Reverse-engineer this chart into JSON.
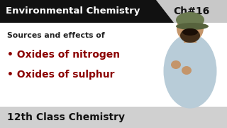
{
  "title_text": "Environmental Chemistry",
  "chapter_text": "Ch#16",
  "subtitle_text": "Sources and effects of",
  "bullet1": "• Oxides of nitrogen",
  "bullet2": "• Oxides of sulphur",
  "bottom_text": "12th Class Chemistry",
  "bg_color": "#ffffff",
  "top_bar_color": "#111111",
  "top_bar_gray_color": "#c8c8c8",
  "bottom_bar_color": "#d0d0d0",
  "title_color": "#ffffff",
  "chapter_color": "#111111",
  "subtitle_color": "#222222",
  "bullet_color": "#8b0000",
  "bottom_text_color": "#111111",
  "person_skin": "#c4956a",
  "person_shirt": "#b8ccd8",
  "person_cap": "#6b7a50",
  "person_beard": "#2a1a0a",
  "figsize": [
    3.2,
    1.8
  ],
  "dpi": 100
}
